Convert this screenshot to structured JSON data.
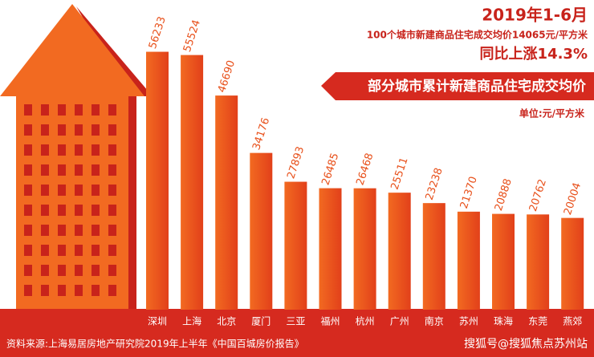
{
  "chart_data": {
    "type": "bar",
    "title": "2019年1-6月",
    "subtitle": "100个城市新建商品住宅成交均价14065元/平方米",
    "highlight": "同比上涨14.3%",
    "banner": "部分城市累计新建商品住宅成交均价",
    "unit": "单位:元/平方米",
    "source": "资料来源:上海易居房地产研究院2019年上半年《中国百城房价报告》",
    "watermark": "搜狐号@搜狐焦点苏州站",
    "categories": [
      "深圳",
      "上海",
      "北京",
      "厦门",
      "三亚",
      "福州",
      "杭州",
      "广州",
      "南京",
      "苏州",
      "珠海",
      "东莞",
      "燕郊"
    ],
    "values": [
      56233,
      55524,
      46690,
      34176,
      27893,
      26485,
      26468,
      25511,
      23238,
      21370,
      20888,
      20762,
      20004
    ],
    "color": "#e8501a",
    "ylim": [
      0,
      60000
    ]
  }
}
